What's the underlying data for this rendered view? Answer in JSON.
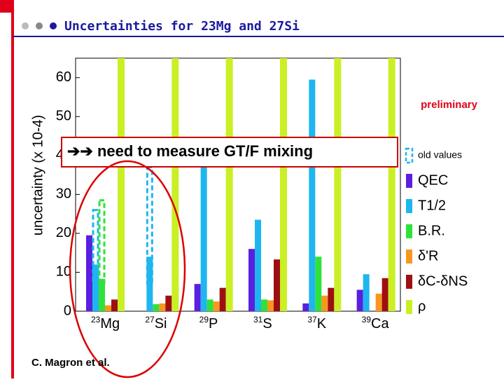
{
  "header": {
    "title": "Uncertainties for 23Mg and 27Si"
  },
  "chart_data": {
    "type": "bar",
    "ylabel": "uncertainty (x 10-4)",
    "categories": [
      "23Mg",
      "27Si",
      "29P",
      "31S",
      "37K",
      "39Ca"
    ],
    "series": [
      {
        "name": "QEC",
        "color": "#5a1fe0",
        "values": [
          19.5,
          0,
          7,
          16,
          2,
          5.5
        ]
      },
      {
        "name": "T1/2",
        "color": "#1eb6f0",
        "values": [
          12,
          14,
          42,
          23.5,
          59.5,
          9.5
        ]
      },
      {
        "name": "B.R.",
        "color": "#2fe23a",
        "values": [
          8.3,
          1.8,
          3,
          3,
          14,
          0
        ]
      },
      {
        "name": "δ'R",
        "color": "#f7981d",
        "values": [
          1.5,
          2,
          2.5,
          2.8,
          4,
          4.5
        ]
      },
      {
        "name": "δC-δNS",
        "color": "#9e0f12",
        "values": [
          3,
          4,
          6,
          13.3,
          6,
          8.5
        ]
      },
      {
        "name": "ρ",
        "color": "#c9f024",
        "values": [
          65,
          65,
          65,
          65,
          65,
          65
        ]
      }
    ],
    "old_values": {
      "label": "old values",
      "series": [
        {
          "color": "#1eb6f0",
          "values": [
            26,
            37,
            null,
            null,
            null,
            null
          ]
        },
        {
          "color": "#2fe23a",
          "values": [
            28.5,
            null,
            null,
            null,
            null,
            null
          ]
        }
      ]
    },
    "ylim": [
      0,
      65
    ],
    "yticks": [
      0,
      10,
      20,
      30,
      40,
      50,
      60
    ],
    "annotations": {
      "preliminary": "preliminary",
      "banner": "➔➔ need to measure GT/F mixing",
      "credit": "C. Magron et al."
    }
  }
}
